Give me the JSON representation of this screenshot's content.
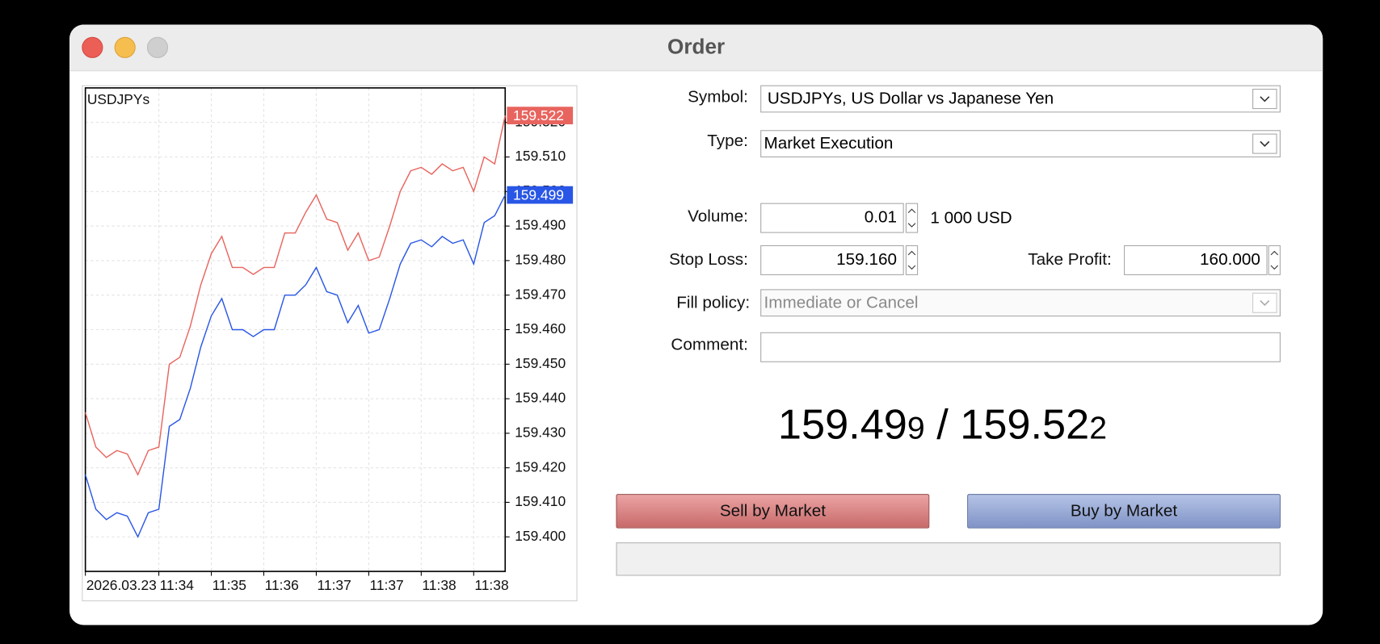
{
  "window": {
    "title": "Order"
  },
  "chart_data": {
    "type": "line",
    "title": "USDJPYs",
    "categories": [
      "2026.03.23",
      null,
      null,
      null,
      null,
      null,
      null,
      "11:34",
      null,
      null,
      null,
      null,
      "11:35",
      null,
      null,
      null,
      null,
      "11:36",
      null,
      null,
      null,
      null,
      "11:37",
      null,
      null,
      null,
      null,
      "11:37",
      null,
      null,
      null,
      null,
      "11:38",
      null,
      null,
      null,
      null,
      "11:38",
      null,
      null,
      null
    ],
    "series": [
      {
        "color": "#e8645e",
        "values": [
          159.436,
          159.426,
          159.423,
          159.425,
          159.424,
          159.418,
          159.425,
          159.426,
          159.45,
          159.452,
          159.461,
          159.473,
          159.482,
          159.487,
          159.478,
          159.478,
          159.476,
          159.478,
          159.478,
          159.488,
          159.488,
          159.494,
          159.499,
          159.492,
          159.491,
          159.483,
          159.488,
          159.48,
          159.481,
          159.49,
          159.5,
          159.506,
          159.507,
          159.505,
          159.508,
          159.506,
          159.507,
          159.5,
          159.51,
          159.508,
          159.522
        ]
      },
      {
        "color": "#2956e6",
        "values": [
          159.418,
          159.408,
          159.405,
          159.407,
          159.406,
          159.4,
          159.407,
          159.408,
          159.432,
          159.434,
          159.443,
          159.455,
          159.464,
          159.469,
          159.46,
          159.46,
          159.458,
          159.46,
          159.46,
          159.47,
          159.47,
          159.473,
          159.478,
          159.471,
          159.47,
          159.462,
          159.467,
          159.459,
          159.46,
          159.469,
          159.479,
          159.485,
          159.486,
          159.484,
          159.487,
          159.485,
          159.486,
          159.479,
          159.491,
          159.493,
          159.499
        ]
      }
    ],
    "ylim": [
      159.39,
      159.53
    ],
    "yticks": [
      {
        "value": 159.4,
        "label": "159.400"
      },
      {
        "value": 159.41,
        "label": "159.410"
      },
      {
        "value": 159.42,
        "label": "159.420"
      },
      {
        "value": 159.43,
        "label": "159.430"
      },
      {
        "value": 159.44,
        "label": "159.440"
      },
      {
        "value": 159.45,
        "label": "159.450"
      },
      {
        "value": 159.46,
        "label": "159.460"
      },
      {
        "value": 159.47,
        "label": "159.470"
      },
      {
        "value": 159.48,
        "label": "159.480"
      },
      {
        "value": 159.49,
        "label": "159.490"
      },
      {
        "value": 159.5,
        "label": "159.500"
      },
      {
        "value": 159.51,
        "label": "159.510"
      },
      {
        "value": 159.52,
        "label": "159.520"
      }
    ],
    "grid": true,
    "price_markers": [
      {
        "value": 159.522,
        "color": "#e8645e"
      },
      {
        "value": 159.499,
        "color": "#2956e6"
      }
    ]
  },
  "form": {
    "symbol": {
      "label": "Symbol:",
      "value": "USDJPYs, US Dollar vs Japanese Yen"
    },
    "type": {
      "label": "Type:",
      "value": "Market Execution"
    },
    "volume": {
      "label": "Volume:",
      "value": "0.01",
      "note": "1 000 USD"
    },
    "stop_loss": {
      "label": "Stop Loss:",
      "value": "159.160"
    },
    "take_profit": {
      "label": "Take Profit:",
      "value": "160.000"
    },
    "fill_policy": {
      "label": "Fill policy:",
      "value": "Immediate or Cancel"
    },
    "comment": {
      "label": "Comment:"
    }
  },
  "quote": {
    "bid": "159.49",
    "bid_pip": "9",
    "separator": "/",
    "ask": "159.52",
    "ask_pip": "2"
  },
  "buttons": {
    "sell": "Sell by Market",
    "buy": "Buy by Market"
  }
}
